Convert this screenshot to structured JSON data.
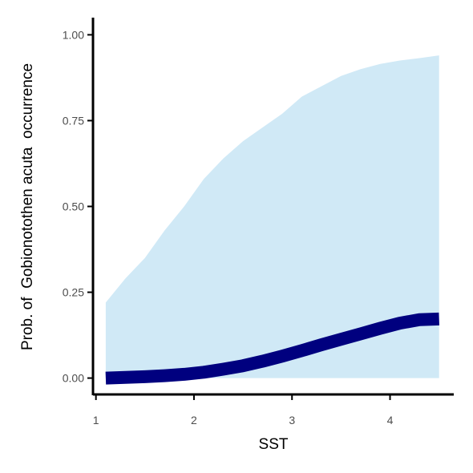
{
  "chart_data": {
    "type": "line",
    "title": "",
    "xlabel": "SST",
    "ylabel": "Prob. of  Gobionotothen acuta  occurrence",
    "xlim": [
      0.97,
      4.65
    ],
    "ylim": [
      -0.05,
      1.05
    ],
    "x_ticks": [
      {
        "value": 1,
        "label": "1"
      },
      {
        "value": 2,
        "label": "2"
      },
      {
        "value": 3,
        "label": "3"
      },
      {
        "value": 4,
        "label": "4"
      }
    ],
    "y_ticks": [
      {
        "value": 0,
        "label": "0.00"
      },
      {
        "value": 0.25,
        "label": "0.25"
      },
      {
        "value": 0.5,
        "label": "0.50"
      },
      {
        "value": 0.75,
        "label": "0.75"
      },
      {
        "value": 1,
        "label": "1.00"
      }
    ],
    "grid": false,
    "series": [
      {
        "x": [
          1.1,
          1.3,
          1.5,
          1.7,
          1.9,
          2.1,
          2.3,
          2.5,
          2.7,
          2.9,
          3.1,
          3.3,
          3.5,
          3.7,
          3.9,
          4.1,
          4.3,
          4.5
        ],
        "y": [
          0.0,
          0.002,
          0.004,
          0.007,
          0.011,
          0.017,
          0.026,
          0.036,
          0.049,
          0.064,
          0.08,
          0.097,
          0.113,
          0.129,
          0.145,
          0.16,
          0.17,
          0.172
        ],
        "lower": [
          0.0,
          0.0,
          0.0,
          0.0,
          0.0,
          0.0,
          0.0,
          0.0,
          0.0,
          0.0,
          0.0,
          0.0,
          0.0,
          0.0,
          0.0,
          0.0,
          0.0,
          0.0
        ],
        "upper": [
          0.22,
          0.29,
          0.35,
          0.43,
          0.5,
          0.58,
          0.64,
          0.69,
          0.73,
          0.77,
          0.82,
          0.85,
          0.88,
          0.9,
          0.915,
          0.925,
          0.932,
          0.94
        ]
      }
    ],
    "colors": {
      "line": "#00007f",
      "ribbon": "#d0e9f6",
      "axis": "#000000",
      "tick_text": "#4d4d4d"
    }
  }
}
